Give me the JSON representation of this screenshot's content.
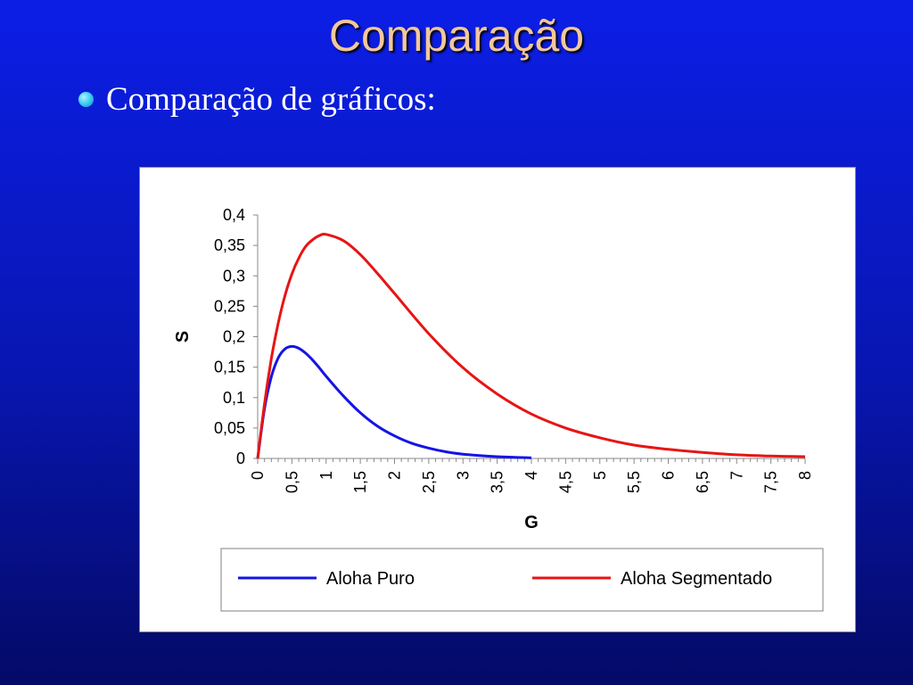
{
  "slide": {
    "title": "Comparação",
    "bullet": "Comparação de gráficos:"
  },
  "colors": {
    "title": "#f3c79b",
    "bullet": "#33c6ef",
    "series_pure": "#1414e6",
    "series_slotted": "#e81414"
  },
  "chart_data": {
    "type": "line",
    "xlabel": "G",
    "ylabel": "S",
    "xlim": [
      0,
      8
    ],
    "ylim": [
      0,
      0.4
    ],
    "x_ticks": [
      "0",
      "0,5",
      "1",
      "1,5",
      "2",
      "2,5",
      "3",
      "3,5",
      "4",
      "4,5",
      "5",
      "5,5",
      "6",
      "6,5",
      "7",
      "7,5",
      "8"
    ],
    "y_ticks": [
      "0",
      "0,05",
      "0,1",
      "0,15",
      "0,2",
      "0,25",
      "0,3",
      "0,35",
      "0,4"
    ],
    "legend_position": "bottom",
    "series": [
      {
        "name": "Aloha Puro",
        "color": "#1414e6",
        "x": [
          0,
          0.1,
          0.2,
          0.3,
          0.4,
          0.5,
          0.6,
          0.7,
          0.8,
          0.9,
          1.0,
          1.25,
          1.5,
          1.75,
          2.0,
          2.25,
          2.5,
          2.75,
          3.0,
          3.5,
          4.0
        ],
        "y": [
          0,
          0.082,
          0.134,
          0.165,
          0.18,
          0.184,
          0.181,
          0.173,
          0.162,
          0.149,
          0.135,
          0.103,
          0.075,
          0.053,
          0.037,
          0.025,
          0.017,
          0.011,
          0.007,
          0.003,
          0.001
        ]
      },
      {
        "name": "Aloha Segmentado",
        "color": "#e81414",
        "x": [
          0,
          0.1,
          0.2,
          0.3,
          0.4,
          0.5,
          0.6,
          0.7,
          0.8,
          0.9,
          1.0,
          1.25,
          1.5,
          1.75,
          2.0,
          2.5,
          3.0,
          3.5,
          4.0,
          4.5,
          5.0,
          5.5,
          6.0,
          6.5,
          7.0,
          7.5,
          8.0
        ],
        "y": [
          0,
          0.09,
          0.164,
          0.222,
          0.268,
          0.303,
          0.329,
          0.348,
          0.359,
          0.366,
          0.368,
          0.358,
          0.335,
          0.304,
          0.271,
          0.205,
          0.149,
          0.106,
          0.073,
          0.05,
          0.034,
          0.022,
          0.015,
          0.01,
          0.006,
          0.004,
          0.003
        ]
      }
    ]
  }
}
